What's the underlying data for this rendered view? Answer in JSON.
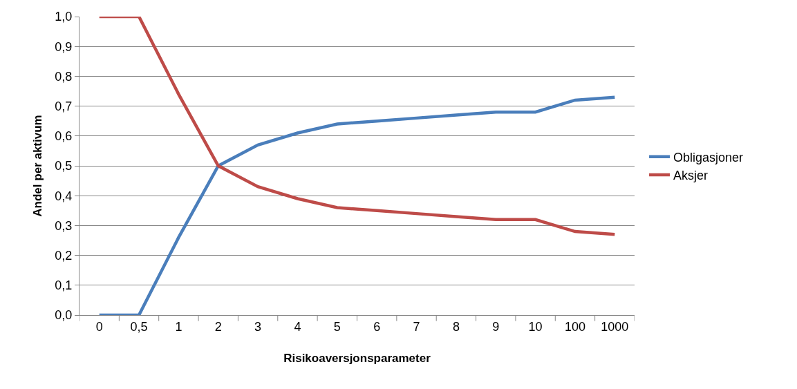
{
  "chart_data": {
    "type": "line",
    "xlabel": "Risikoaversjonsparameter",
    "ylabel": "Andel per aktivum",
    "categories": [
      "0",
      "0,5",
      "1",
      "2",
      "3",
      "4",
      "5",
      "6",
      "7",
      "8",
      "9",
      "10",
      "100",
      "1000"
    ],
    "series": [
      {
        "name": "Obligasjoner",
        "color": "#4a7ebb",
        "values": [
          0,
          0,
          0.26,
          0.5,
          0.57,
          0.61,
          0.64,
          0.65,
          0.66,
          0.67,
          0.68,
          0.68,
          0.72,
          0.73
        ]
      },
      {
        "name": "Aksjer",
        "color": "#be4b48",
        "values": [
          1,
          1,
          0.74,
          0.5,
          0.43,
          0.39,
          0.36,
          0.35,
          0.34,
          0.33,
          0.32,
          0.32,
          0.28,
          0.27
        ]
      }
    ],
    "ylim": [
      0,
      1
    ],
    "yticks": [
      {
        "value": 0,
        "label": "0,0"
      },
      {
        "value": 0.1,
        "label": "0,1"
      },
      {
        "value": 0.2,
        "label": "0,2"
      },
      {
        "value": 0.3,
        "label": "0,3"
      },
      {
        "value": 0.4,
        "label": "0,4"
      },
      {
        "value": 0.5,
        "label": "0,5"
      },
      {
        "value": 0.6,
        "label": "0,6"
      },
      {
        "value": 0.7,
        "label": "0,7"
      },
      {
        "value": 0.8,
        "label": "0,8"
      },
      {
        "value": 0.9,
        "label": "0,9"
      },
      {
        "value": 1,
        "label": "1,0"
      }
    ],
    "grid": "y",
    "legend": "right",
    "marker": "none",
    "line_style": "solid"
  }
}
